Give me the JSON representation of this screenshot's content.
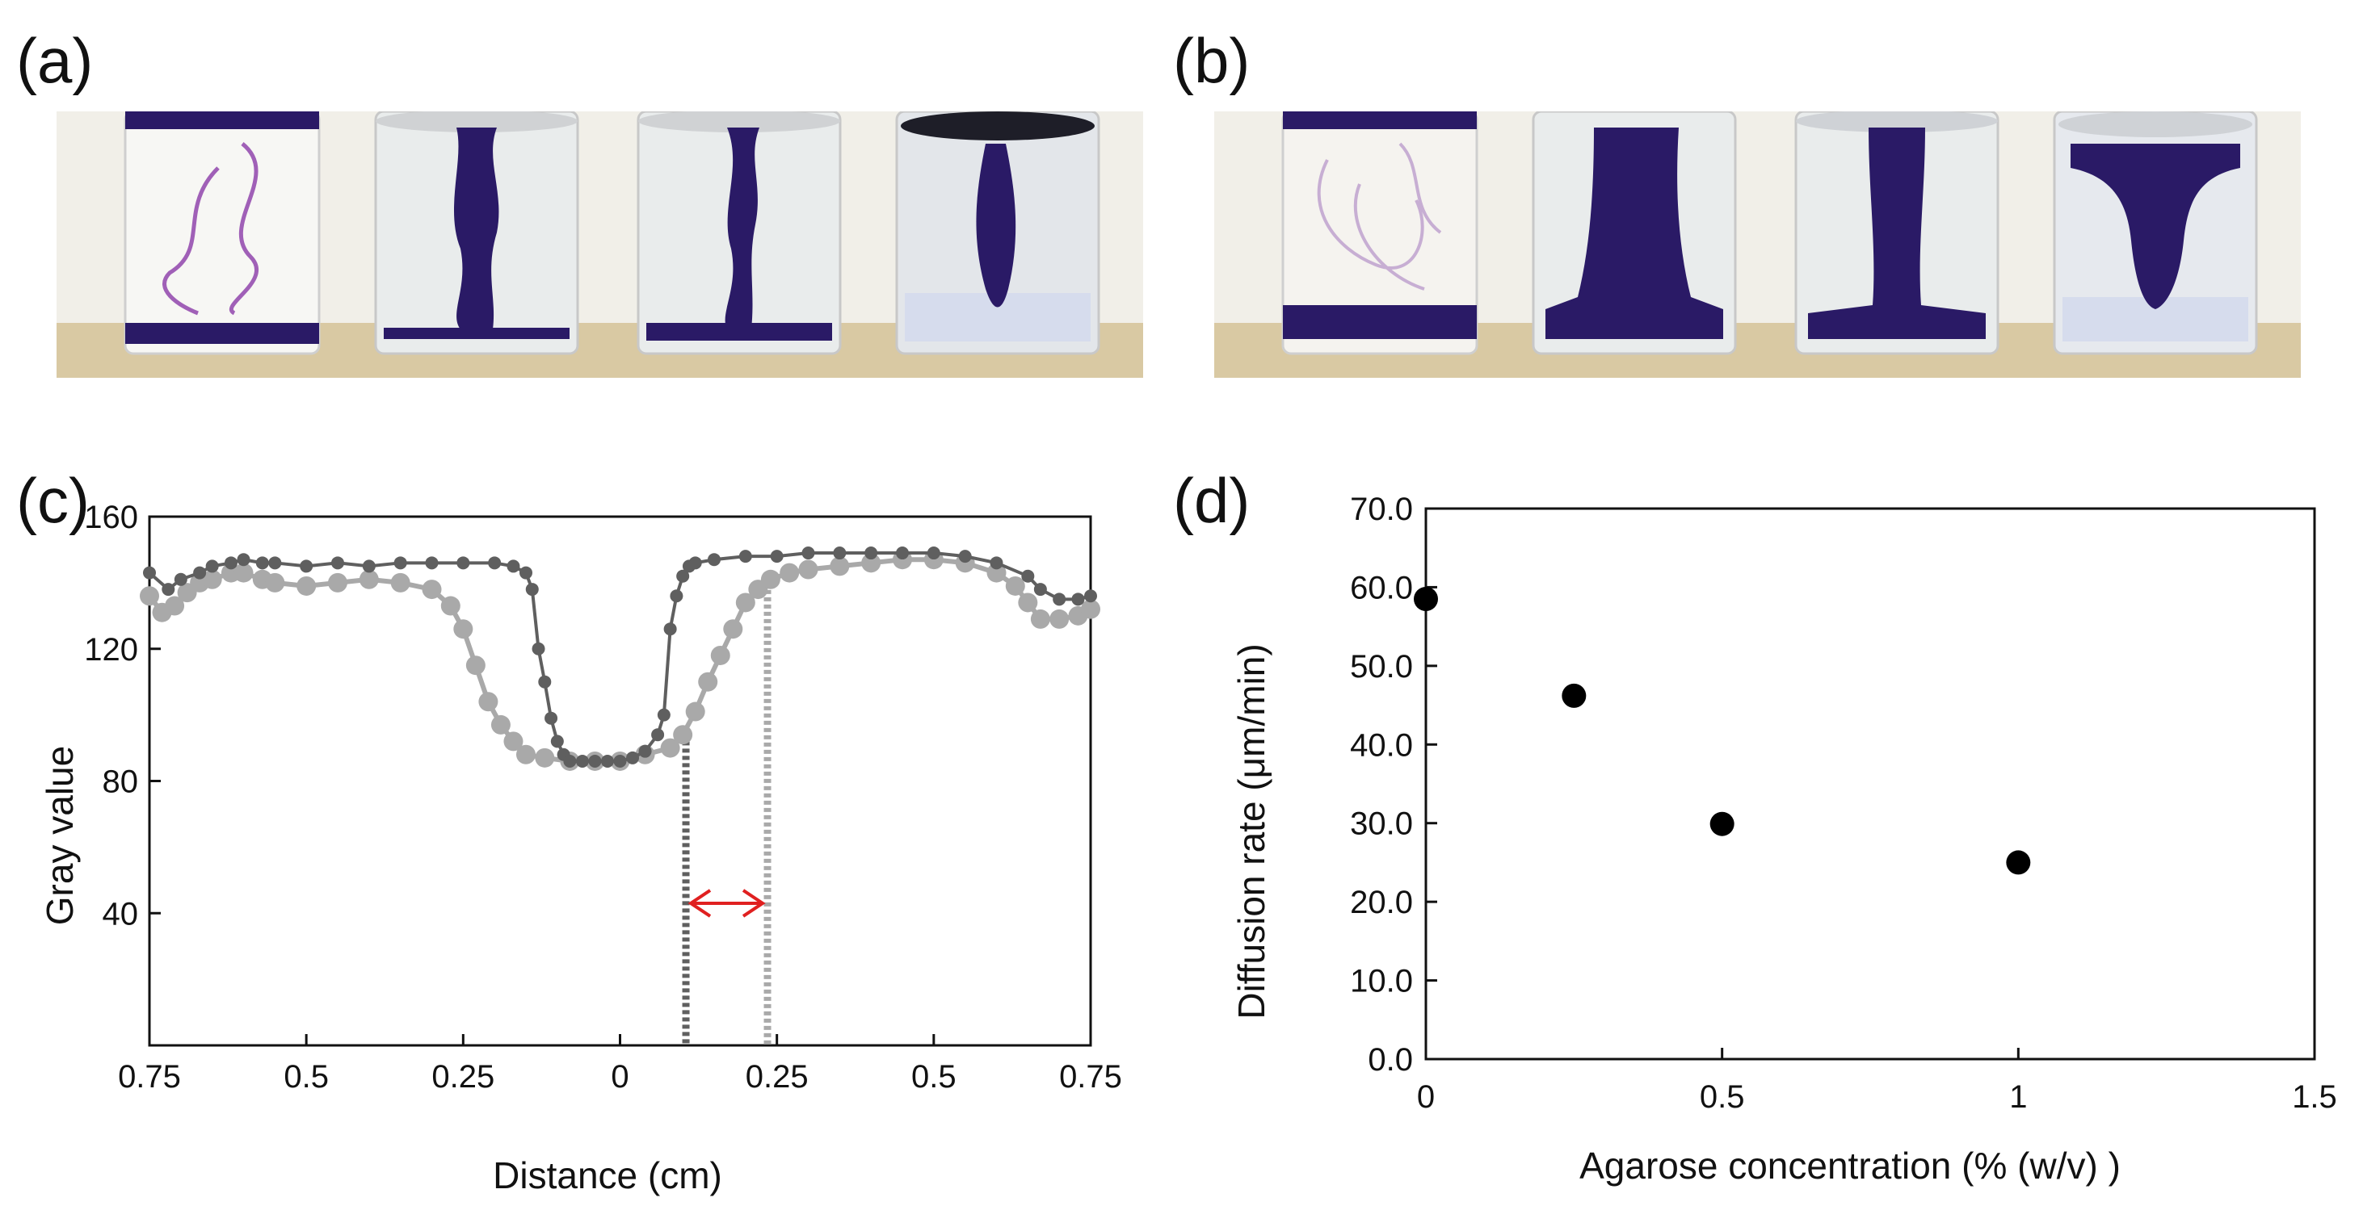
{
  "panels": {
    "a_label": "(a)",
    "b_label": "(b)",
    "c_label": "(c)",
    "d_label": "(d)"
  },
  "colors": {
    "dye": "#2a1a66",
    "purple_wisp": "#8a3aa8",
    "photo_background": "#f1efe8",
    "shelf": "#d9c9a3",
    "series_dark": "#5f5f5f",
    "series_light": "#a9a9a9",
    "arrow": "#e02020",
    "markers_d": "#000000"
  },
  "chart_data": [
    {
      "type": "line",
      "panel": "(c)",
      "title": "",
      "xlabel": "Distance (cm)",
      "ylabel": "Gray value",
      "xlim": [
        -0.75,
        0.75
      ],
      "ylim": [
        0,
        160
      ],
      "xticks": [
        -0.75,
        -0.5,
        -0.25,
        0,
        0.25,
        0.5,
        0.75
      ],
      "xtick_labels": [
        "0.75",
        "0.5",
        "0.25",
        "0",
        "0.25",
        "0.5",
        "0.75"
      ],
      "yticks": [
        40,
        80,
        120,
        160
      ],
      "ytick_labels": [
        "40",
        "80",
        "120",
        "160"
      ],
      "grid": false,
      "series": [
        {
          "color": "#5f5f5f",
          "x": [
            -0.75,
            -0.72,
            -0.7,
            -0.67,
            -0.65,
            -0.62,
            -0.6,
            -0.57,
            -0.55,
            -0.5,
            -0.45,
            -0.4,
            -0.35,
            -0.3,
            -0.25,
            -0.2,
            -0.17,
            -0.15,
            -0.14,
            -0.13,
            -0.12,
            -0.11,
            -0.1,
            -0.09,
            -0.08,
            -0.06,
            -0.04,
            -0.02,
            0,
            0.02,
            0.04,
            0.06,
            0.07,
            0.08,
            0.09,
            0.1,
            0.11,
            0.12,
            0.15,
            0.2,
            0.25,
            0.3,
            0.35,
            0.4,
            0.45,
            0.5,
            0.55,
            0.6,
            0.65,
            0.67,
            0.7,
            0.73,
            0.75
          ],
          "y": [
            143,
            138,
            141,
            143,
            145,
            146,
            147,
            146,
            146,
            145,
            146,
            145,
            146,
            146,
            146,
            146,
            145,
            143,
            138,
            120,
            110,
            99,
            92,
            88,
            86,
            86,
            86,
            86,
            86,
            87,
            89,
            94,
            100,
            126,
            136,
            142,
            145,
            146,
            147,
            148,
            148,
            149,
            149,
            149,
            149,
            149,
            148,
            146,
            142,
            138,
            135,
            135,
            136
          ]
        },
        {
          "color": "#a9a9a9",
          "x": [
            -0.75,
            -0.73,
            -0.71,
            -0.69,
            -0.67,
            -0.65,
            -0.62,
            -0.6,
            -0.57,
            -0.55,
            -0.5,
            -0.45,
            -0.4,
            -0.35,
            -0.3,
            -0.27,
            -0.25,
            -0.23,
            -0.21,
            -0.19,
            -0.17,
            -0.15,
            -0.12,
            -0.08,
            -0.04,
            0,
            0.04,
            0.08,
            0.1,
            0.12,
            0.14,
            0.16,
            0.18,
            0.2,
            0.22,
            0.24,
            0.27,
            0.3,
            0.35,
            0.4,
            0.45,
            0.5,
            0.55,
            0.6,
            0.63,
            0.65,
            0.67,
            0.7,
            0.73,
            0.75
          ],
          "y": [
            136,
            131,
            133,
            137,
            140,
            141,
            143,
            143,
            141,
            140,
            139,
            140,
            141,
            140,
            138,
            133,
            126,
            115,
            104,
            97,
            92,
            88,
            87,
            86,
            86,
            86,
            88,
            90,
            94,
            101,
            110,
            118,
            126,
            134,
            138,
            141,
            143,
            144,
            145,
            146,
            147,
            147,
            146,
            143,
            139,
            134,
            129,
            129,
            130,
            132
          ]
        }
      ],
      "annotations": {
        "dotted_line_dark_x": 0.105,
        "dotted_line_light_x": 0.235,
        "double_arrow": {
          "x_start": 0.105,
          "x_end": 0.235,
          "y": 43,
          "color": "#e02020"
        }
      }
    },
    {
      "type": "scatter",
      "panel": "(d)",
      "title": "",
      "xlabel": "Agarose concentration (% (w/v) )",
      "ylabel": "Diffusion rate (μm/min)",
      "xlim": [
        0,
        1.5
      ],
      "ylim": [
        0,
        70
      ],
      "xticks": [
        0,
        0.5,
        1,
        1.5
      ],
      "xtick_labels": [
        "0",
        "0.5",
        "1",
        "1.5"
      ],
      "yticks": [
        0,
        10,
        20,
        30,
        40,
        50,
        60,
        70
      ],
      "ytick_labels": [
        "0.0",
        "10.0",
        "20.0",
        "30.0",
        "40.0",
        "50.0",
        "60.0",
        "70.0"
      ],
      "grid": false,
      "series": [
        {
          "color": "#000000",
          "x": [
            0,
            0.25,
            0.5,
            1.0
          ],
          "y": [
            58.5,
            46.2,
            29.9,
            25.0
          ]
        }
      ]
    }
  ]
}
